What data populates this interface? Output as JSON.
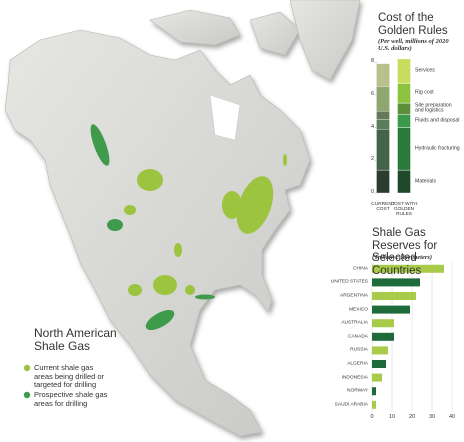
{
  "map": {
    "title": "North American Shale Gas",
    "legend": [
      {
        "label": "Current shale gas areas being drilled or targeted for drilling",
        "color": "#9dc43e"
      },
      {
        "label": "Prospective shale gas areas for drilling",
        "color": "#3f9b4b"
      }
    ]
  },
  "chart_data": [
    {
      "type": "stacked-bar",
      "title": "Cost of the Golden Rules",
      "subtitle": "(Per well, millions of 2020 U.S. dollars)",
      "categories": [
        "CURRENT COST",
        "COST WITH GOLDEN RULES"
      ],
      "series": [
        {
          "name": "Materials",
          "color": "#1e4a2a",
          "values": [
            1.4,
            1.4
          ]
        },
        {
          "name": "Hydraulic fracturing",
          "color": "#2b7a3c",
          "values": [
            2.5,
            2.6
          ]
        },
        {
          "name": "Fluids and disposal",
          "color": "#3a9a4a",
          "values": [
            0.6,
            0.8
          ]
        },
        {
          "name": "Site preparation and logistics",
          "color": "#5e8f3a",
          "values": [
            0.5,
            0.7
          ]
        },
        {
          "name": "Rig cost",
          "color": "#8cc440",
          "values": [
            1.5,
            1.2
          ]
        },
        {
          "name": "Services",
          "color": "#c9dd5c",
          "values": [
            1.4,
            1.5
          ]
        }
      ],
      "ylim": [
        0,
        8.5
      ],
      "yticks": [
        0,
        2,
        4,
        6,
        8
      ]
    },
    {
      "type": "hbar",
      "title": "Shale Gas Reserves for Selected Countries",
      "subtitle": "(Trillion cubic meters)",
      "categories": [
        "China",
        "United States",
        "Argentina",
        "Mexico",
        "Australia",
        "Canada",
        "Russia",
        "Algeria",
        "Indonesia",
        "Norway",
        "Saudi Arabia"
      ],
      "values": [
        36,
        24,
        22,
        19,
        11,
        11,
        8,
        7,
        5,
        2,
        2
      ],
      "colors": [
        "#a9cb4a",
        "#1f6a3a",
        "#a9cb4a",
        "#1f6a3a",
        "#a9cb4a",
        "#1f6a3a",
        "#a9cb4a",
        "#1f6a3a",
        "#a9cb4a",
        "#1f6a3a",
        "#a9cb4a"
      ],
      "xlim": [
        0,
        40
      ],
      "xticks": [
        0,
        10,
        20,
        30,
        40
      ],
      "grid": true
    }
  ]
}
